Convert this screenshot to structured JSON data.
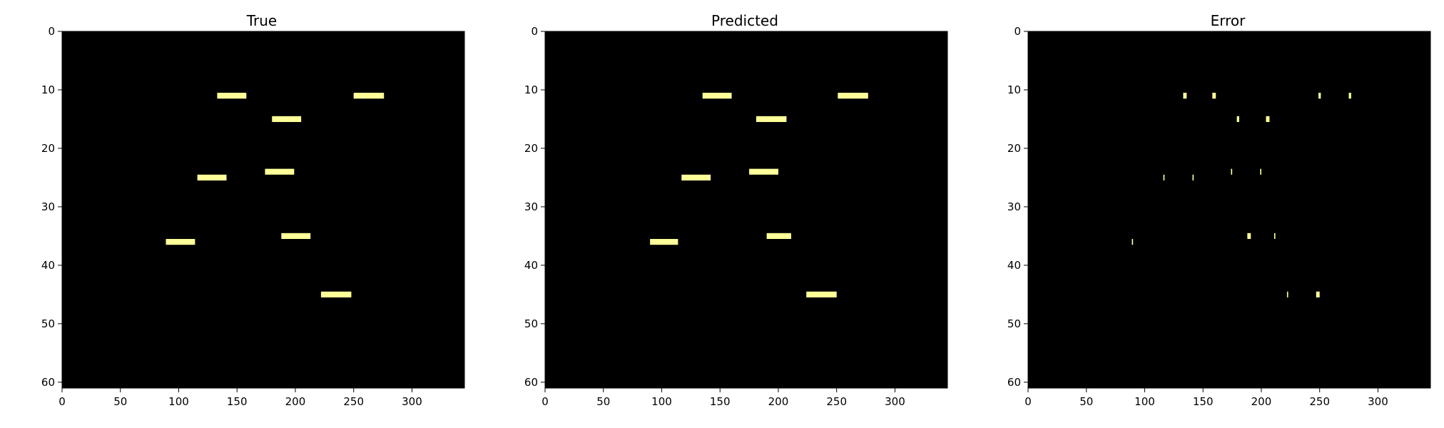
{
  "chart_data": [
    {
      "type": "heatmap",
      "title": "True",
      "xlabel": "",
      "ylabel": "",
      "xlim": [
        0,
        345
      ],
      "ylim": [
        61,
        0
      ],
      "xticks": [
        0,
        50,
        100,
        150,
        200,
        250,
        300
      ],
      "yticks": [
        0,
        10,
        20,
        30,
        40,
        50,
        60
      ],
      "background_color": "#000000",
      "mark_color": "#ffff99",
      "segments": [
        {
          "x0": 133,
          "x1": 158,
          "y": 11
        },
        {
          "x0": 250,
          "x1": 276,
          "y": 11
        },
        {
          "x0": 180,
          "x1": 205,
          "y": 15
        },
        {
          "x0": 174,
          "x1": 199,
          "y": 24
        },
        {
          "x0": 116,
          "x1": 141,
          "y": 25
        },
        {
          "x0": 188,
          "x1": 213,
          "y": 35
        },
        {
          "x0": 89,
          "x1": 114,
          "y": 36
        },
        {
          "x0": 222,
          "x1": 248,
          "y": 45
        }
      ]
    },
    {
      "type": "heatmap",
      "title": "Predicted",
      "xlabel": "",
      "ylabel": "",
      "xlim": [
        0,
        345
      ],
      "ylim": [
        61,
        0
      ],
      "xticks": [
        0,
        50,
        100,
        150,
        200,
        250,
        300
      ],
      "yticks": [
        0,
        10,
        20,
        30,
        40,
        50,
        60
      ],
      "background_color": "#000000",
      "mark_color": "#ffff99",
      "segments": [
        {
          "x0": 135,
          "x1": 160,
          "y": 11
        },
        {
          "x0": 251,
          "x1": 277,
          "y": 11
        },
        {
          "x0": 181,
          "x1": 207,
          "y": 15
        },
        {
          "x0": 175,
          "x1": 200,
          "y": 24
        },
        {
          "x0": 117,
          "x1": 142,
          "y": 25
        },
        {
          "x0": 190,
          "x1": 211,
          "y": 35
        },
        {
          "x0": 90,
          "x1": 114,
          "y": 36
        },
        {
          "x0": 224,
          "x1": 250,
          "y": 45
        }
      ]
    },
    {
      "type": "heatmap",
      "title": "Error",
      "xlabel": "",
      "ylabel": "",
      "xlim": [
        0,
        345
      ],
      "ylim": [
        61,
        0
      ],
      "xticks": [
        0,
        50,
        100,
        150,
        200,
        250,
        300
      ],
      "yticks": [
        0,
        10,
        20,
        30,
        40,
        50,
        60
      ],
      "background_color": "#000000",
      "mark_color": "#ffff99",
      "segments": [
        {
          "x0": 133,
          "x1": 136,
          "y": 11
        },
        {
          "x0": 158,
          "x1": 161,
          "y": 11
        },
        {
          "x0": 249,
          "x1": 251,
          "y": 11
        },
        {
          "x0": 275,
          "x1": 277,
          "y": 11
        },
        {
          "x0": 179,
          "x1": 181,
          "y": 15
        },
        {
          "x0": 204,
          "x1": 207,
          "y": 15
        },
        {
          "x0": 174,
          "x1": 175,
          "y": 24
        },
        {
          "x0": 199,
          "x1": 200,
          "y": 24
        },
        {
          "x0": 116,
          "x1": 117,
          "y": 25
        },
        {
          "x0": 141,
          "x1": 142,
          "y": 25
        },
        {
          "x0": 188,
          "x1": 191,
          "y": 35
        },
        {
          "x0": 211,
          "x1": 212,
          "y": 35
        },
        {
          "x0": 89,
          "x1": 90,
          "y": 36
        },
        {
          "x0": 222,
          "x1": 223,
          "y": 45
        },
        {
          "x0": 247,
          "x1": 250,
          "y": 45
        }
      ]
    }
  ]
}
